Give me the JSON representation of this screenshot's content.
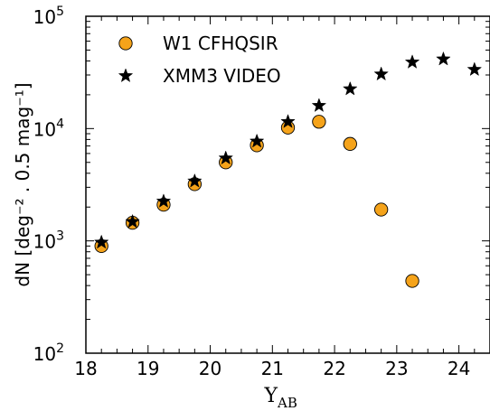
{
  "chart_data": {
    "type": "scatter",
    "xlabel": "Y",
    "xlabel_sub": "AB",
    "ylabel": "dN [deg⁻² . 0.5 mag⁻¹]",
    "xlim": [
      18,
      24.5
    ],
    "ylim": [
      100,
      100000
    ],
    "yscale": "log",
    "x_ticks": [
      "18",
      "19",
      "20",
      "21",
      "22",
      "23",
      "24"
    ],
    "y_ticks": [
      {
        "base": "10",
        "exp": "2"
      },
      {
        "base": "10",
        "exp": "3"
      },
      {
        "base": "10",
        "exp": "4"
      },
      {
        "base": "10",
        "exp": "5"
      }
    ],
    "legend_position": "top-left",
    "grid": false,
    "series": [
      {
        "name": "W1 CFHQSIR",
        "marker": "circle",
        "color": "#f5a31a",
        "x": [
          18.25,
          18.75,
          19.25,
          19.75,
          20.25,
          20.75,
          21.25,
          21.75,
          22.25,
          22.75,
          23.25
        ],
        "y": [
          900,
          1450,
          2100,
          3200,
          5000,
          7100,
          10200,
          11500,
          7300,
          1900,
          440
        ]
      },
      {
        "name": "XMM3 VIDEO",
        "marker": "star",
        "color": "#000000",
        "x": [
          18.25,
          18.75,
          19.25,
          19.75,
          20.25,
          20.75,
          21.25,
          21.75,
          22.25,
          22.75,
          23.25,
          23.75,
          24.25
        ],
        "y": [
          970,
          1480,
          2250,
          3400,
          5450,
          7700,
          11500,
          16000,
          22500,
          30500,
          39000,
          41500,
          33500
        ]
      }
    ]
  }
}
